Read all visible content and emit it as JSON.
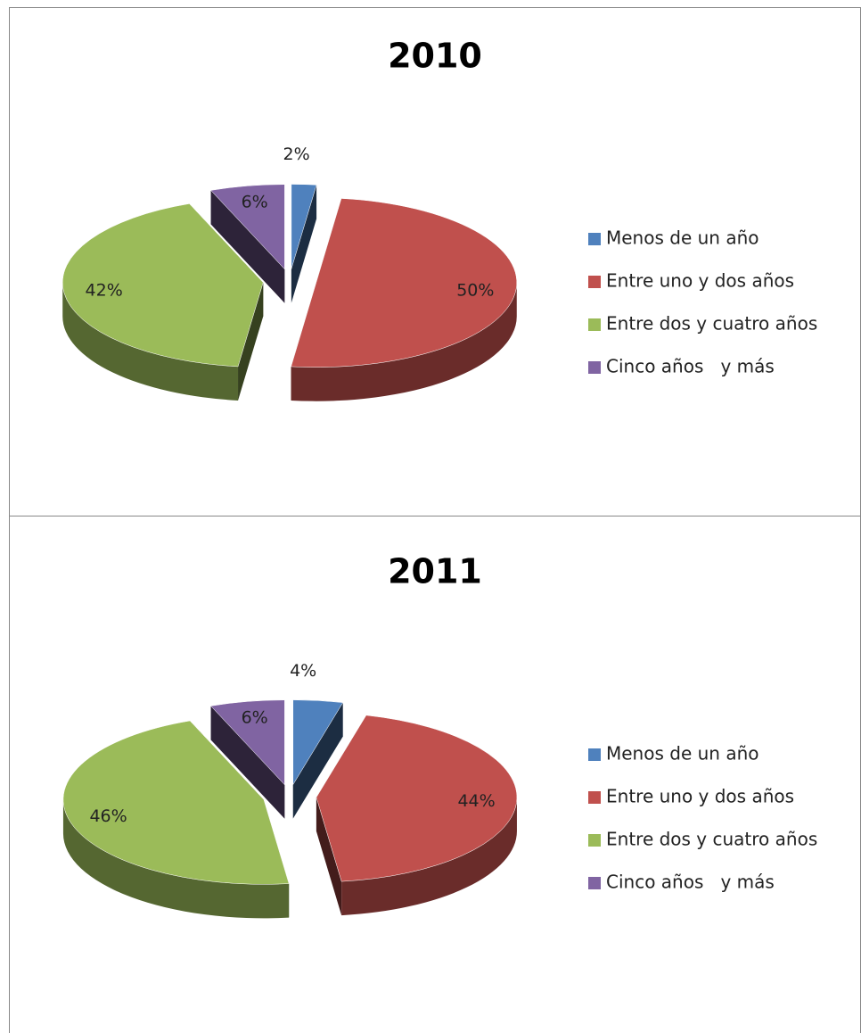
{
  "chart_data": [
    {
      "type": "pie",
      "title": "2010",
      "categories": [
        "Menos de un año",
        "Entre uno y dos años",
        "Entre dos y cuatro años",
        "Cinco años   y más"
      ],
      "values": [
        2,
        50,
        42,
        6
      ],
      "value_labels": [
        "2%",
        "50%",
        "42%",
        "6%"
      ],
      "colors": [
        "#4f81bd",
        "#c0504d",
        "#9bbb59",
        "#8064a2"
      ],
      "legend": "right"
    },
    {
      "type": "pie",
      "title": "2011",
      "categories": [
        "Menos de un año",
        "Entre uno y dos años",
        "Entre dos y cuatro años",
        "Cinco años   y más"
      ],
      "values": [
        4,
        44,
        46,
        6
      ],
      "value_labels": [
        "4%",
        "44%",
        "46%",
        "6%"
      ],
      "colors": [
        "#4f81bd",
        "#c0504d",
        "#9bbb59",
        "#8064a2"
      ],
      "legend": "right"
    }
  ]
}
